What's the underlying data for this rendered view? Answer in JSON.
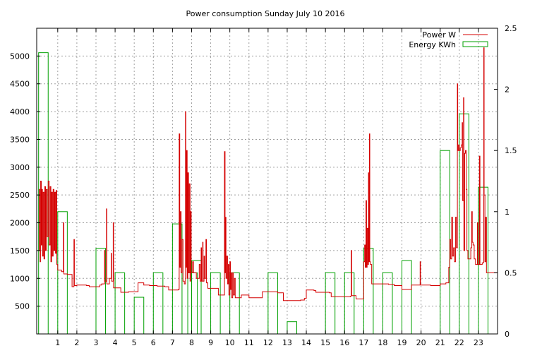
{
  "chart_data": {
    "type": "line",
    "title": "Power consumption Sunday July 10 2016",
    "xlabel": "",
    "ylabel": "",
    "y2label": "",
    "xlim": [
      -0.1,
      24.0
    ],
    "ylim": [
      0,
      5500
    ],
    "y2lim": [
      0,
      2.5
    ],
    "x_ticks": [
      1,
      2,
      3,
      4,
      5,
      6,
      7,
      8,
      9,
      10,
      11,
      12,
      13,
      14,
      15,
      16,
      17,
      18,
      19,
      20,
      21,
      22,
      23
    ],
    "y_ticks": [
      500,
      1000,
      1500,
      2000,
      2500,
      3000,
      3500,
      4000,
      4500,
      5000
    ],
    "y2_ticks": [
      0,
      0.5,
      1,
      1.5,
      2,
      2.5
    ],
    "grid": true,
    "legend_position": "top-right",
    "colors": {
      "power": "#d40000",
      "energy": "#00a000"
    },
    "series": [
      {
        "name": "Power W",
        "axis": "left",
        "style": "steps",
        "points": [
          [
            0.0,
            1500
          ],
          [
            0.04,
            2600
          ],
          [
            0.08,
            1300
          ],
          [
            0.1,
            2750
          ],
          [
            0.14,
            1600
          ],
          [
            0.17,
            2600
          ],
          [
            0.2,
            1400
          ],
          [
            0.24,
            2550
          ],
          [
            0.28,
            1350
          ],
          [
            0.32,
            2650
          ],
          [
            0.36,
            1500
          ],
          [
            0.4,
            2600
          ],
          [
            0.45,
            1750
          ],
          [
            0.5,
            2750
          ],
          [
            0.55,
            1600
          ],
          [
            0.6,
            2650
          ],
          [
            0.64,
            1300
          ],
          [
            0.68,
            2550
          ],
          [
            0.72,
            1400
          ],
          [
            0.76,
            2600
          ],
          [
            0.8,
            1500
          ],
          [
            0.84,
            2550
          ],
          [
            0.88,
            1450
          ],
          [
            0.92,
            2580
          ],
          [
            0.95,
            1250
          ],
          [
            1.0,
            1150
          ],
          [
            1.2,
            1120
          ],
          [
            1.3,
            2000
          ],
          [
            1.32,
            1080
          ],
          [
            1.5,
            1070
          ],
          [
            1.75,
            850
          ],
          [
            1.85,
            1700
          ],
          [
            1.87,
            870
          ],
          [
            2.0,
            880
          ],
          [
            2.5,
            870
          ],
          [
            2.65,
            850
          ],
          [
            3.0,
            850
          ],
          [
            3.2,
            880
          ],
          [
            3.3,
            900
          ],
          [
            3.45,
            1500
          ],
          [
            3.47,
            950
          ],
          [
            3.55,
            2250
          ],
          [
            3.57,
            900
          ],
          [
            3.7,
            1000
          ],
          [
            3.8,
            1450
          ],
          [
            3.82,
            950
          ],
          [
            3.9,
            2000
          ],
          [
            3.92,
            830
          ],
          [
            4.0,
            830
          ],
          [
            4.3,
            750
          ],
          [
            4.7,
            760
          ],
          [
            5.0,
            760
          ],
          [
            5.2,
            920
          ],
          [
            5.5,
            880
          ],
          [
            5.8,
            870
          ],
          [
            6.2,
            860
          ],
          [
            6.6,
            850
          ],
          [
            6.8,
            790
          ],
          [
            7.3,
            800
          ],
          [
            7.35,
            3600
          ],
          [
            7.38,
            1200
          ],
          [
            7.42,
            2200
          ],
          [
            7.45,
            1100
          ],
          [
            7.5,
            1700
          ],
          [
            7.55,
            950
          ],
          [
            7.62,
            900
          ],
          [
            7.68,
            4000
          ],
          [
            7.7,
            1200
          ],
          [
            7.74,
            3300
          ],
          [
            7.77,
            1000
          ],
          [
            7.8,
            2900
          ],
          [
            7.84,
            1100
          ],
          [
            7.88,
            2700
          ],
          [
            7.92,
            950
          ],
          [
            7.95,
            2200
          ],
          [
            7.98,
            1100
          ],
          [
            8.05,
            1300
          ],
          [
            8.1,
            1100
          ],
          [
            8.25,
            1000
          ],
          [
            8.4,
            1250
          ],
          [
            8.45,
            950
          ],
          [
            8.5,
            1550
          ],
          [
            8.52,
            950
          ],
          [
            8.58,
            1650
          ],
          [
            8.6,
            950
          ],
          [
            8.65,
            1400
          ],
          [
            8.68,
            1000
          ],
          [
            8.75,
            1700
          ],
          [
            8.78,
            920
          ],
          [
            8.85,
            820
          ],
          [
            9.0,
            820
          ],
          [
            9.3,
            820
          ],
          [
            9.4,
            700
          ],
          [
            9.7,
            700
          ],
          [
            9.72,
            3280
          ],
          [
            9.75,
            1100
          ],
          [
            9.78,
            2100
          ],
          [
            9.8,
            1000
          ],
          [
            9.84,
            1400
          ],
          [
            9.88,
            900
          ],
          [
            9.92,
            1250
          ],
          [
            9.95,
            700
          ],
          [
            10.0,
            1300
          ],
          [
            10.03,
            800
          ],
          [
            10.07,
            1100
          ],
          [
            10.1,
            650
          ],
          [
            10.15,
            1100
          ],
          [
            10.18,
            700
          ],
          [
            10.24,
            1000
          ],
          [
            10.28,
            650
          ],
          [
            10.4,
            650
          ],
          [
            10.6,
            700
          ],
          [
            10.8,
            700
          ],
          [
            11.0,
            650
          ],
          [
            11.3,
            650
          ],
          [
            11.5,
            650
          ],
          [
            11.7,
            760
          ],
          [
            12.0,
            760
          ],
          [
            12.5,
            740
          ],
          [
            12.8,
            600
          ],
          [
            13.3,
            600
          ],
          [
            13.7,
            610
          ],
          [
            13.9,
            640
          ],
          [
            14.0,
            790
          ],
          [
            14.4,
            780
          ],
          [
            14.5,
            750
          ],
          [
            15.0,
            750
          ],
          [
            15.2,
            740
          ],
          [
            15.3,
            670
          ],
          [
            15.7,
            670
          ],
          [
            16.0,
            670
          ],
          [
            16.3,
            680
          ],
          [
            16.35,
            1500
          ],
          [
            16.37,
            690
          ],
          [
            16.6,
            630
          ],
          [
            16.9,
            630
          ],
          [
            17.0,
            1300
          ],
          [
            17.05,
            1600
          ],
          [
            17.08,
            1200
          ],
          [
            17.12,
            2400
          ],
          [
            17.15,
            1200
          ],
          [
            17.18,
            1900
          ],
          [
            17.22,
            1250
          ],
          [
            17.25,
            2900
          ],
          [
            17.28,
            1300
          ],
          [
            17.3,
            3600
          ],
          [
            17.32,
            1300
          ],
          [
            17.35,
            1250
          ],
          [
            17.42,
            900
          ],
          [
            17.8,
            900
          ],
          [
            18.0,
            900
          ],
          [
            18.3,
            890
          ],
          [
            18.6,
            870
          ],
          [
            18.9,
            870
          ],
          [
            19.0,
            800
          ],
          [
            19.2,
            800
          ],
          [
            19.5,
            880
          ],
          [
            19.8,
            880
          ],
          [
            19.95,
            1300
          ],
          [
            19.97,
            880
          ],
          [
            20.1,
            880
          ],
          [
            20.5,
            870
          ],
          [
            20.9,
            870
          ],
          [
            21.0,
            900
          ],
          [
            21.3,
            920
          ],
          [
            21.45,
            1200
          ],
          [
            21.5,
            1700
          ],
          [
            21.55,
            1350
          ],
          [
            21.6,
            2100
          ],
          [
            21.65,
            1400
          ],
          [
            21.7,
            1550
          ],
          [
            21.75,
            1300
          ],
          [
            21.8,
            2100
          ],
          [
            21.85,
            1550
          ],
          [
            21.9,
            4500
          ],
          [
            21.92,
            3300
          ],
          [
            21.96,
            3400
          ],
          [
            22.0,
            3300
          ],
          [
            22.05,
            3350
          ],
          [
            22.1,
            3400
          ],
          [
            22.15,
            3800
          ],
          [
            22.17,
            2400
          ],
          [
            22.22,
            4250
          ],
          [
            22.24,
            1500
          ],
          [
            22.28,
            3250
          ],
          [
            22.32,
            3300
          ],
          [
            22.36,
            2600
          ],
          [
            22.4,
            1500
          ],
          [
            22.45,
            1350
          ],
          [
            22.55,
            1350
          ],
          [
            22.6,
            1550
          ],
          [
            22.65,
            2200
          ],
          [
            22.68,
            1650
          ],
          [
            22.72,
            1600
          ],
          [
            22.78,
            1350
          ],
          [
            22.85,
            1250
          ],
          [
            22.95,
            2000
          ],
          [
            22.97,
            1250
          ],
          [
            23.05,
            3200
          ],
          [
            23.08,
            1250
          ],
          [
            23.2,
            1280
          ],
          [
            23.28,
            5150
          ],
          [
            23.3,
            2500
          ],
          [
            23.34,
            1300
          ],
          [
            23.38,
            2100
          ],
          [
            23.42,
            1100
          ],
          [
            23.7,
            1100
          ],
          [
            24.0,
            1100
          ]
        ]
      },
      {
        "name": "Energy KWh",
        "axis": "right",
        "style": "boxes",
        "bar_width": 0.5,
        "x": [
          0.0,
          1.0,
          3.0,
          4.0,
          5.0,
          6.0,
          7.0,
          7.8,
          8.0,
          9.0,
          10.0,
          12.0,
          13.0,
          15.0,
          16.0,
          17.0,
          18.0,
          19.0,
          21.0,
          22.0,
          23.0
        ],
        "values": [
          2.3,
          1.0,
          0.7,
          0.5,
          0.3,
          0.5,
          0.9,
          0.5,
          0.6,
          0.5,
          0.5,
          0.5,
          0.1,
          0.5,
          0.5,
          0.7,
          0.5,
          0.6,
          1.5,
          1.8,
          1.2
        ]
      }
    ]
  }
}
